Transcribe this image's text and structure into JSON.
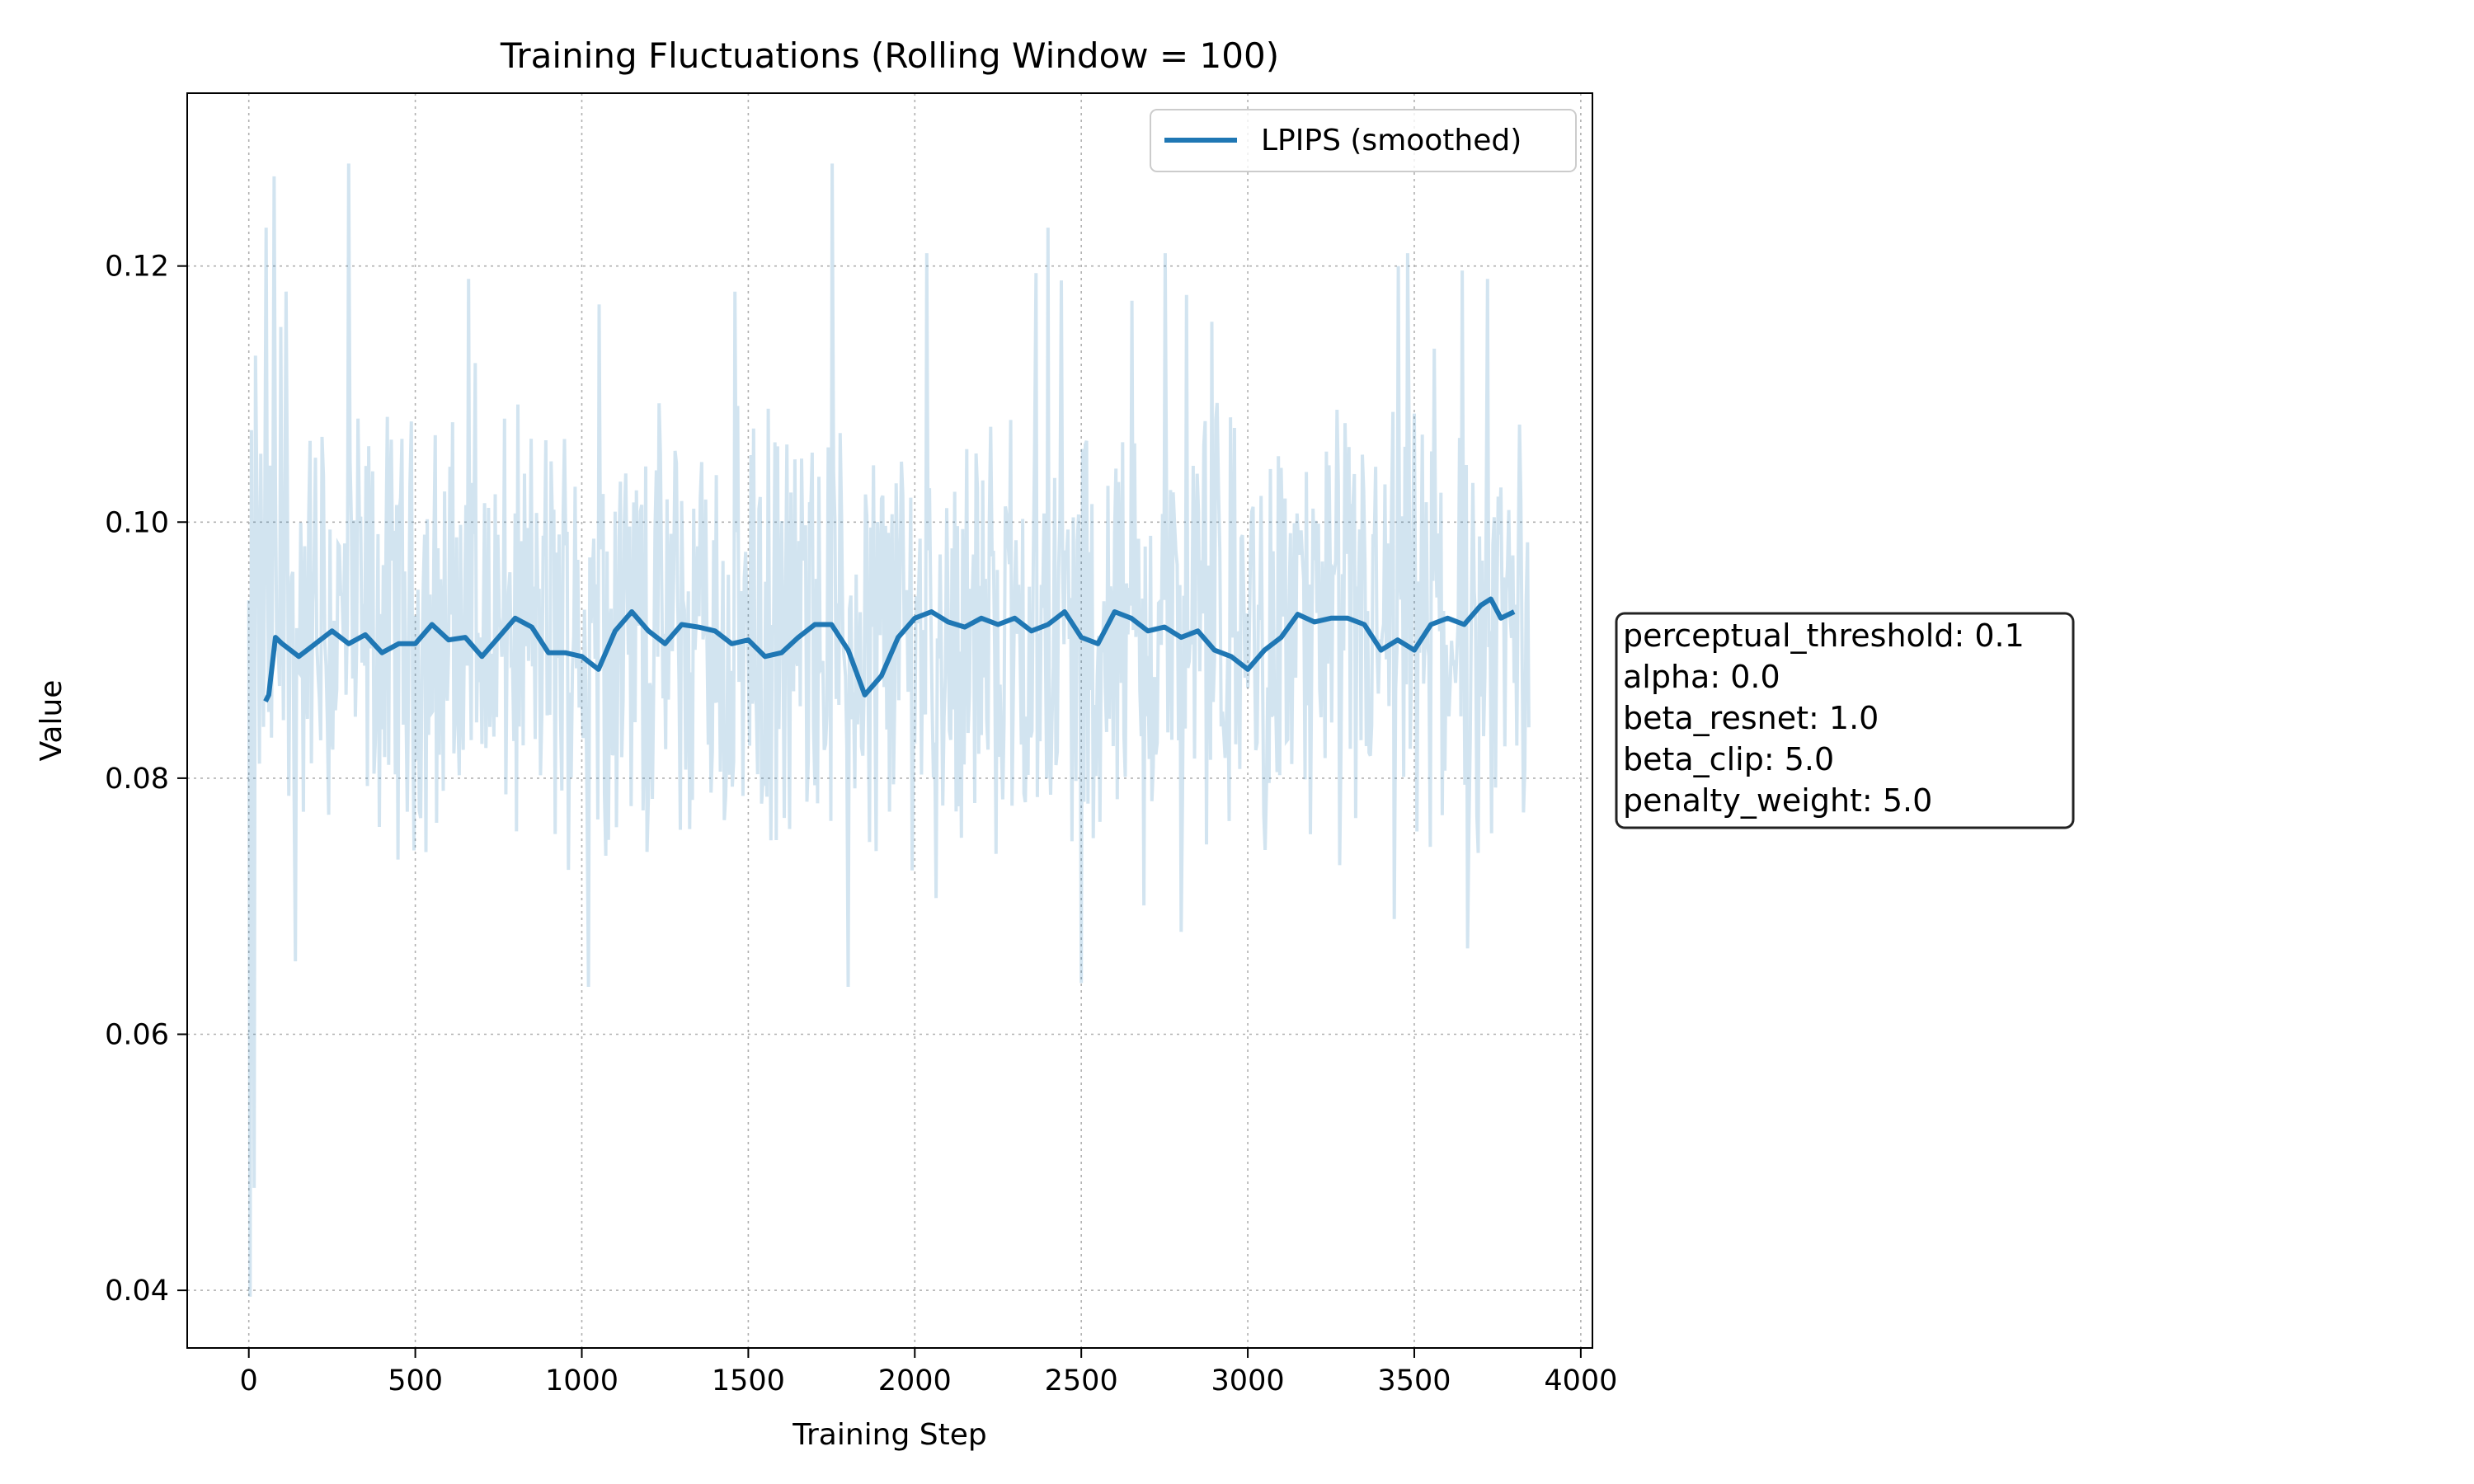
{
  "chart_data": {
    "type": "line",
    "title": "Training Fluctuations (Rolling Window = 100)",
    "xlabel": "Training Step",
    "ylabel": "Value",
    "xlim": [
      -185,
      4035
    ],
    "ylim": [
      0.0355,
      0.1335
    ],
    "xticks": [
      0,
      500,
      1000,
      1500,
      2000,
      2500,
      3000,
      3500,
      4000
    ],
    "xtick_labels": [
      "0",
      "500",
      "1000",
      "1500",
      "2000",
      "2500",
      "3000",
      "3500",
      "4000"
    ],
    "yticks": [
      0.04,
      0.06,
      0.08,
      0.1,
      0.12
    ],
    "ytick_labels": [
      "0.04",
      "0.06",
      "0.08",
      "0.10",
      "0.12"
    ],
    "grid": true,
    "legend_position": "top-right",
    "series": [
      {
        "name": "",
        "role": "raw",
        "color": "#1f77b4",
        "alpha": 0.2,
        "x_start": 0,
        "x_end": 3845,
        "approx_mean": 0.0915,
        "approx_min": 0.0395,
        "approx_max": 0.128,
        "spikes_high": [
          [
            20,
            0.113
          ],
          [
            50,
            0.123
          ],
          [
            75,
            0.127
          ],
          [
            110,
            0.118
          ],
          [
            300,
            0.128
          ],
          [
            660,
            0.119
          ],
          [
            1050,
            0.117
          ],
          [
            1460,
            0.118
          ],
          [
            1750,
            0.128
          ],
          [
            2035,
            0.121
          ],
          [
            2400,
            0.123
          ],
          [
            2750,
            0.121
          ],
          [
            3450,
            0.12
          ],
          [
            3480,
            0.121
          ],
          [
            3720,
            0.119
          ]
        ],
        "spikes_low": [
          [
            5,
            0.0395
          ],
          [
            15,
            0.048
          ],
          [
            140,
            0.073
          ],
          [
            140,
            0.0657
          ],
          [
            1020,
            0.0637
          ],
          [
            1460,
            0.065
          ],
          [
            1800,
            0.0637
          ],
          [
            2500,
            0.064
          ],
          [
            2800,
            0.068
          ],
          [
            3440,
            0.069
          ],
          [
            3660,
            0.0667
          ],
          [
            3730,
            0.0757
          ]
        ]
      },
      {
        "name": "LPIPS (smoothed)",
        "role": "smoothed",
        "color": "#1f77b4",
        "values": [
          [
            50,
            0.086
          ],
          [
            60,
            0.0865
          ],
          [
            80,
            0.091
          ],
          [
            100,
            0.0905
          ],
          [
            150,
            0.0895
          ],
          [
            200,
            0.0905
          ],
          [
            250,
            0.0915
          ],
          [
            300,
            0.0905
          ],
          [
            350,
            0.0912
          ],
          [
            400,
            0.0898
          ],
          [
            450,
            0.0905
          ],
          [
            500,
            0.0905
          ],
          [
            550,
            0.092
          ],
          [
            600,
            0.0908
          ],
          [
            650,
            0.091
          ],
          [
            700,
            0.0895
          ],
          [
            750,
            0.091
          ],
          [
            800,
            0.0925
          ],
          [
            850,
            0.0918
          ],
          [
            900,
            0.0898
          ],
          [
            950,
            0.0898
          ],
          [
            1000,
            0.0895
          ],
          [
            1050,
            0.0885
          ],
          [
            1100,
            0.0915
          ],
          [
            1150,
            0.093
          ],
          [
            1200,
            0.0915
          ],
          [
            1250,
            0.0905
          ],
          [
            1300,
            0.092
          ],
          [
            1350,
            0.0918
          ],
          [
            1400,
            0.0915
          ],
          [
            1450,
            0.0905
          ],
          [
            1500,
            0.0908
          ],
          [
            1550,
            0.0895
          ],
          [
            1600,
            0.0898
          ],
          [
            1650,
            0.091
          ],
          [
            1700,
            0.092
          ],
          [
            1750,
            0.092
          ],
          [
            1800,
            0.09
          ],
          [
            1850,
            0.0865
          ],
          [
            1900,
            0.088
          ],
          [
            1950,
            0.091
          ],
          [
            2000,
            0.0925
          ],
          [
            2050,
            0.093
          ],
          [
            2100,
            0.0922
          ],
          [
            2150,
            0.0918
          ],
          [
            2200,
            0.0925
          ],
          [
            2250,
            0.092
          ],
          [
            2300,
            0.0925
          ],
          [
            2350,
            0.0915
          ],
          [
            2400,
            0.092
          ],
          [
            2450,
            0.093
          ],
          [
            2500,
            0.091
          ],
          [
            2550,
            0.0905
          ],
          [
            2600,
            0.093
          ],
          [
            2650,
            0.0925
          ],
          [
            2700,
            0.0915
          ],
          [
            2750,
            0.0918
          ],
          [
            2800,
            0.091
          ],
          [
            2850,
            0.0915
          ],
          [
            2900,
            0.09
          ],
          [
            2950,
            0.0895
          ],
          [
            3000,
            0.0885
          ],
          [
            3050,
            0.09
          ],
          [
            3100,
            0.091
          ],
          [
            3150,
            0.0928
          ],
          [
            3200,
            0.0922
          ],
          [
            3250,
            0.0925
          ],
          [
            3300,
            0.0925
          ],
          [
            3350,
            0.092
          ],
          [
            3400,
            0.09
          ],
          [
            3450,
            0.0908
          ],
          [
            3500,
            0.09
          ],
          [
            3550,
            0.092
          ],
          [
            3600,
            0.0925
          ],
          [
            3650,
            0.092
          ],
          [
            3700,
            0.0935
          ],
          [
            3730,
            0.094
          ],
          [
            3760,
            0.0925
          ],
          [
            3800,
            0.093
          ]
        ]
      }
    ]
  },
  "params_box": {
    "lines": [
      "perceptual_threshold: 0.1",
      "alpha: 0.0",
      "beta_resnet: 1.0",
      "beta_clip: 5.0",
      "penalty_weight: 5.0"
    ]
  }
}
